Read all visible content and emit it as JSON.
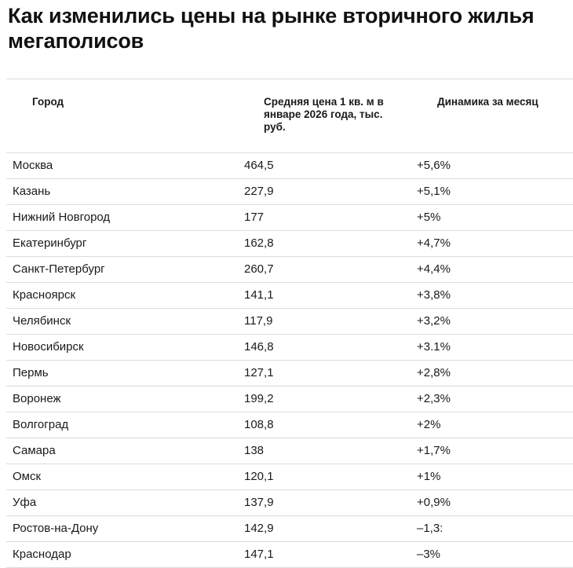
{
  "title": "Как изменились цены на рынке вторичного жилья мегаполисов",
  "table": {
    "headers": {
      "city": "Город",
      "price": "Средняя цена 1 кв. м в январе 2026 года, тыс. руб.",
      "dynamics": "Динамика за месяц"
    },
    "rows": [
      {
        "city": "Москва",
        "price": "464,5",
        "dynamics": "+5,6%"
      },
      {
        "city": "Казань",
        "price": "227,9",
        "dynamics": "+5,1%"
      },
      {
        "city": "Нижний Новгород",
        "price": "177",
        "dynamics": "+5%"
      },
      {
        "city": "Екатеринбург",
        "price": "162,8",
        "dynamics": "+4,7%"
      },
      {
        "city": "Санкт-Петербург",
        "price": "260,7",
        "dynamics": "+4,4%"
      },
      {
        "city": "Красноярск",
        "price": "141,1",
        "dynamics": "+3,8%"
      },
      {
        "city": "Челябинск",
        "price": "117,9",
        "dynamics": "+3,2%"
      },
      {
        "city": "Новосибирск",
        "price": "146,8",
        "dynamics": "+3.1%"
      },
      {
        "city": "Пермь",
        "price": "127,1",
        "dynamics": "+2,8%"
      },
      {
        "city": "Воронеж",
        "price": "199,2",
        "dynamics": "+2,3%"
      },
      {
        "city": "Волгоград",
        "price": "108,8",
        "dynamics": "+2%"
      },
      {
        "city": "Самара",
        "price": "138",
        "dynamics": "+1,7%"
      },
      {
        "city": "Омск",
        "price": "120,1",
        "dynamics": "+1%"
      },
      {
        "city": "Уфа",
        "price": "137,9",
        "dynamics": "+0,9%"
      },
      {
        "city": "Ростов-на-Дону",
        "price": "142,9",
        "dynamics": "–1,3:"
      },
      {
        "city": "Краснодар",
        "price": "147,1",
        "dynamics": "–3%"
      }
    ]
  }
}
